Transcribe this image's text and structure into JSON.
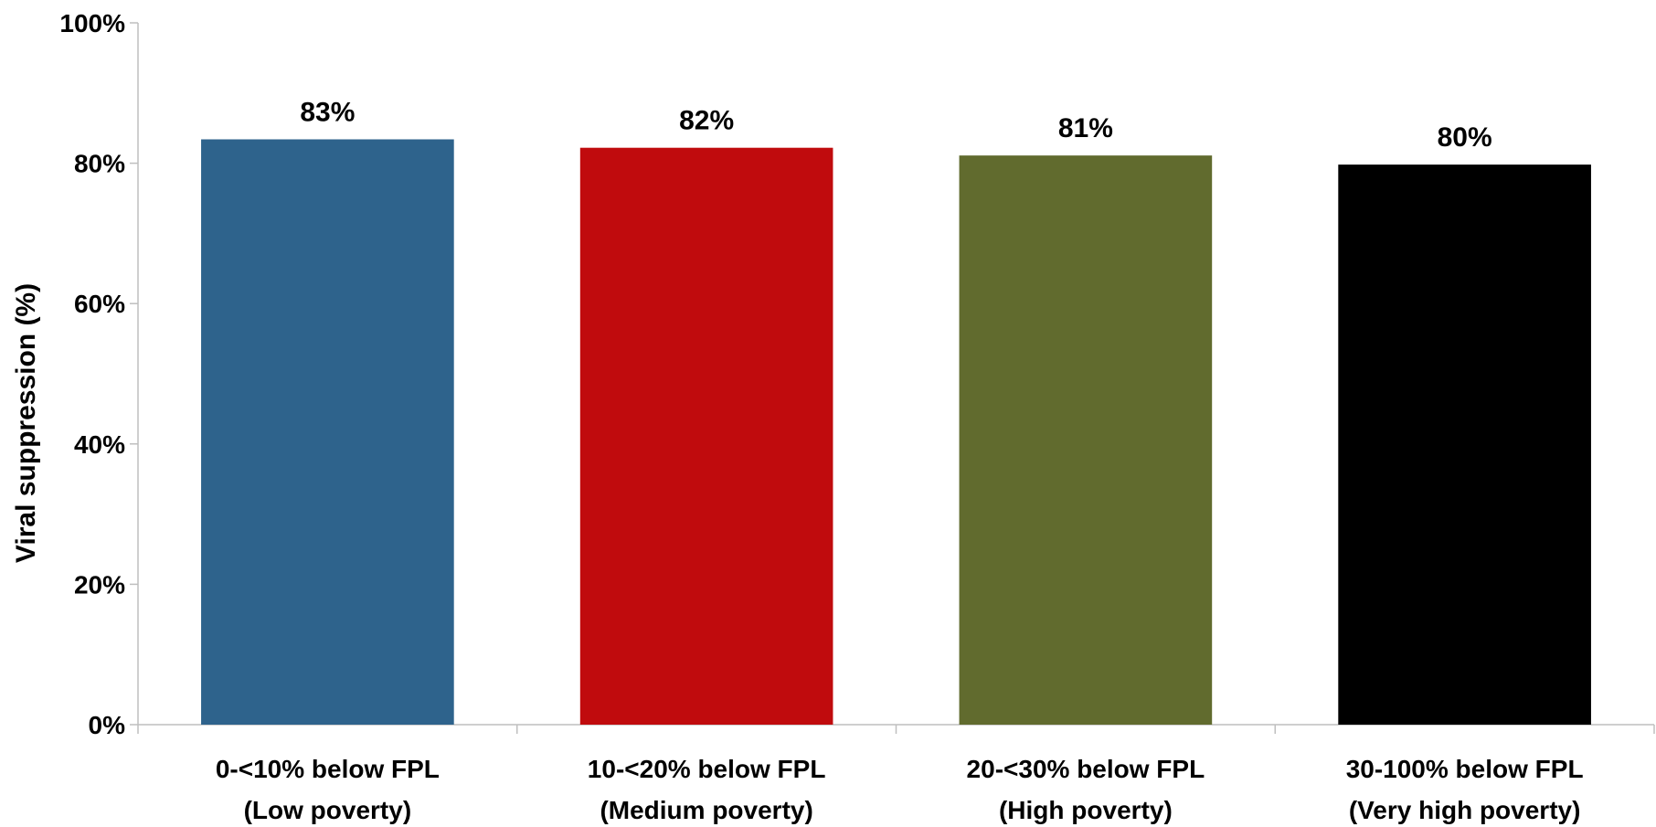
{
  "chart_data": {
    "type": "bar",
    "categories": [
      [
        "0-<10% below FPL",
        "(Low poverty)"
      ],
      [
        "10-<20% below FPL",
        "(Medium poverty)"
      ],
      [
        "20-<30% below FPL",
        "(High poverty)"
      ],
      [
        "30-100% below FPL",
        "(Very high poverty)"
      ]
    ],
    "values": [
      83.4,
      82.2,
      81.1,
      79.8
    ],
    "data_labels": [
      "83%",
      "82%",
      "81%",
      "80%"
    ],
    "colors": [
      "#2e638c",
      "#c00b0d",
      "#616b2e",
      "#000000"
    ],
    "ylabel": "Viral suppression (%)",
    "ylim": [
      0,
      100
    ],
    "yticks": [
      0,
      20,
      40,
      60,
      80,
      100
    ],
    "ytick_labels": [
      "0%",
      "20%",
      "40%",
      "60%",
      "80%",
      "100%"
    ],
    "grid": false,
    "legend": "none"
  }
}
